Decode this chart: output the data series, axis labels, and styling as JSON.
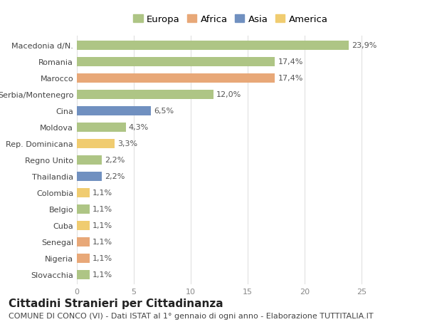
{
  "categories": [
    "Slovacchia",
    "Nigeria",
    "Senegal",
    "Cuba",
    "Belgio",
    "Colombia",
    "Thailandia",
    "Regno Unito",
    "Rep. Dominicana",
    "Moldova",
    "Cina",
    "Serbia/Montenegro",
    "Marocco",
    "Romania",
    "Macedonia d/N."
  ],
  "values": [
    1.1,
    1.1,
    1.1,
    1.1,
    1.1,
    1.1,
    2.2,
    2.2,
    3.3,
    4.3,
    6.5,
    12.0,
    17.4,
    17.4,
    23.9
  ],
  "labels": [
    "1,1%",
    "1,1%",
    "1,1%",
    "1,1%",
    "1,1%",
    "1,1%",
    "2,2%",
    "2,2%",
    "3,3%",
    "4,3%",
    "6,5%",
    "12,0%",
    "17,4%",
    "17,4%",
    "23,9%"
  ],
  "colors": [
    "#aec585",
    "#e8a878",
    "#e8a878",
    "#f0cc70",
    "#aec585",
    "#f0cc70",
    "#7090c0",
    "#aec585",
    "#f0cc70",
    "#aec585",
    "#7090c0",
    "#aec585",
    "#e8a878",
    "#aec585",
    "#aec585"
  ],
  "legend_labels": [
    "Europa",
    "Africa",
    "Asia",
    "America"
  ],
  "legend_colors": [
    "#aec585",
    "#e8a878",
    "#7090c0",
    "#f0cc70"
  ],
  "title": "Cittadini Stranieri per Cittadinanza",
  "subtitle": "COMUNE DI CONCO (VI) - Dati ISTAT al 1° gennaio di ogni anno - Elaborazione TUTTITALIA.IT",
  "xlim": [
    0,
    27
  ],
  "xticks": [
    0,
    5,
    10,
    15,
    20,
    25
  ],
  "background_color": "#ffffff",
  "grid_color": "#e0e0e0",
  "bar_height": 0.55,
  "label_fontsize": 8.0,
  "tick_fontsize": 8.0,
  "legend_fontsize": 9.5,
  "title_fontsize": 11,
  "subtitle_fontsize": 8.0
}
